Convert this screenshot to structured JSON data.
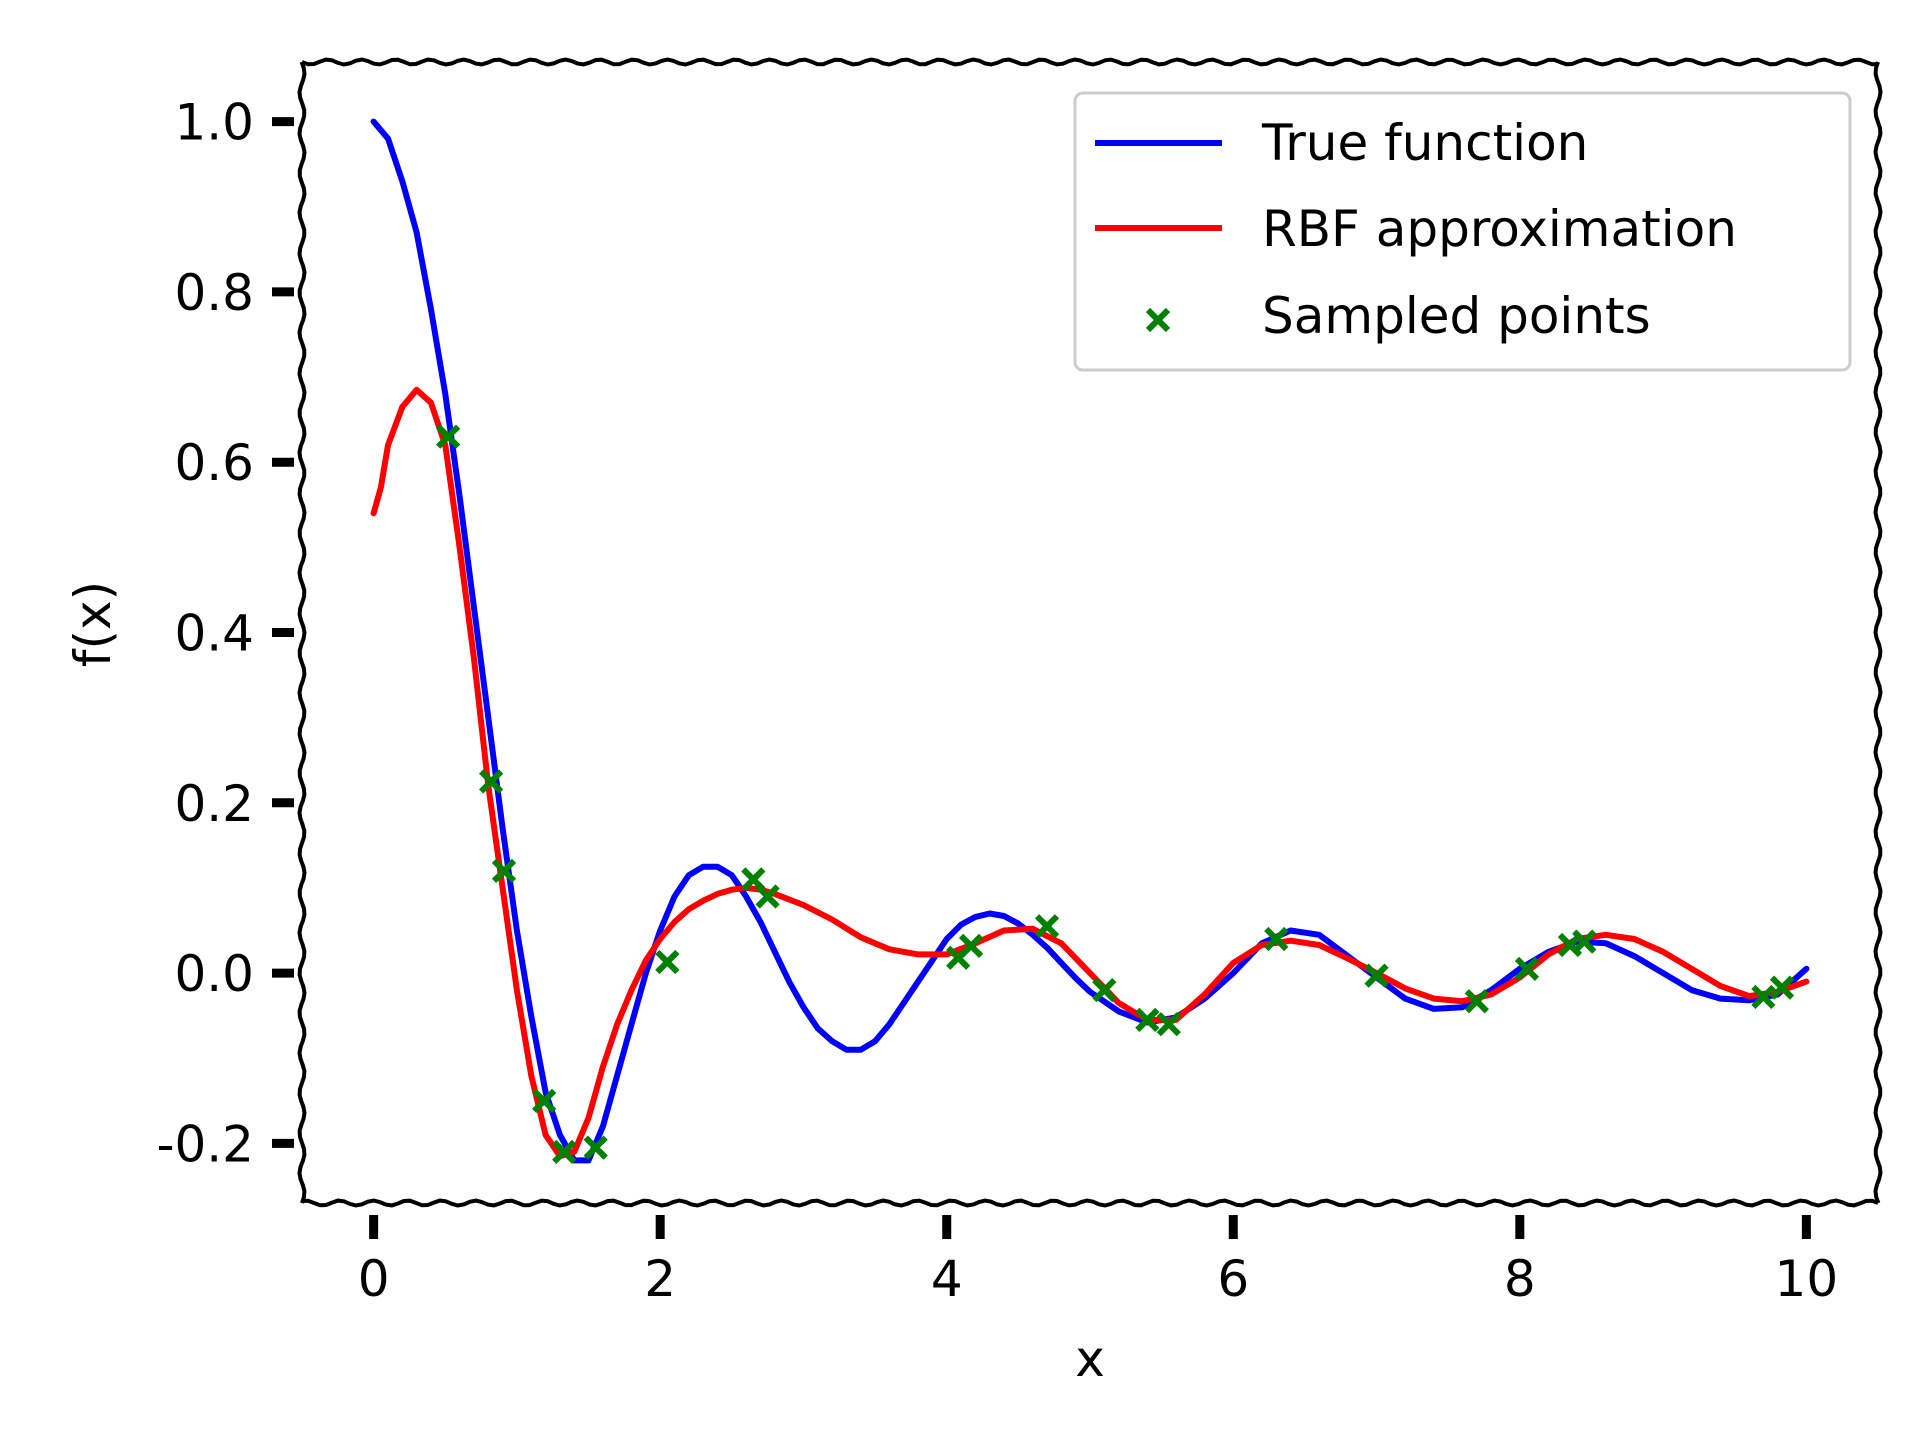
{
  "chart_data": {
    "type": "line",
    "title": "",
    "xlabel": "x",
    "ylabel": "f(x)",
    "xlim": [
      -0.5,
      10.5
    ],
    "ylim": [
      -0.27,
      1.07
    ],
    "xticks": [
      0,
      2,
      4,
      6,
      8,
      10
    ],
    "xtick_labels": [
      "0",
      "2",
      "4",
      "6",
      "8",
      "10"
    ],
    "yticks": [
      -0.2,
      0.0,
      0.2,
      0.4,
      0.6,
      0.8,
      1.0
    ],
    "ytick_labels": [
      "-0.2",
      "0.0",
      "0.2",
      "0.4",
      "0.6",
      "0.8",
      "1.0"
    ],
    "grid": false,
    "legend": "top-right",
    "series": [
      {
        "name": "True function",
        "kind": "line",
        "color": "#0000ff",
        "x": [
          0,
          0.1,
          0.2,
          0.3,
          0.4,
          0.5,
          0.6,
          0.7,
          0.8,
          0.9,
          1.0,
          1.1,
          1.2,
          1.3,
          1.4,
          1.5,
          1.6,
          1.7,
          1.8,
          1.9,
          2.0,
          2.1,
          2.2,
          2.3,
          2.4,
          2.5,
          2.6,
          2.7,
          2.8,
          2.9,
          3.0,
          3.1,
          3.2,
          3.3,
          3.4,
          3.5,
          3.6,
          3.7,
          3.8,
          3.9,
          4.0,
          4.1,
          4.2,
          4.3,
          4.4,
          4.5,
          4.6,
          4.7,
          4.8,
          4.9,
          5.0,
          5.2,
          5.4,
          5.6,
          5.8,
          6.0,
          6.2,
          6.4,
          6.6,
          6.8,
          7.0,
          7.2,
          7.4,
          7.6,
          7.8,
          8.0,
          8.2,
          8.4,
          8.6,
          8.8,
          9.0,
          9.2,
          9.4,
          9.6,
          9.8,
          10.0
        ],
        "y": [
          1.0,
          0.98,
          0.93,
          0.87,
          0.78,
          0.68,
          0.56,
          0.43,
          0.3,
          0.17,
          0.05,
          -0.05,
          -0.14,
          -0.19,
          -0.22,
          -0.22,
          -0.18,
          -0.12,
          -0.06,
          0.0,
          0.05,
          0.09,
          0.115,
          0.125,
          0.125,
          0.115,
          0.09,
          0.06,
          0.025,
          -0.01,
          -0.04,
          -0.065,
          -0.08,
          -0.09,
          -0.09,
          -0.08,
          -0.06,
          -0.035,
          -0.01,
          0.015,
          0.04,
          0.057,
          0.066,
          0.07,
          0.067,
          0.058,
          0.045,
          0.03,
          0.012,
          -0.006,
          -0.022,
          -0.045,
          -0.058,
          -0.052,
          -0.03,
          0.0,
          0.035,
          0.05,
          0.045,
          0.02,
          -0.005,
          -0.03,
          -0.042,
          -0.04,
          -0.02,
          0.005,
          0.025,
          0.037,
          0.035,
          0.02,
          0.0,
          -0.02,
          -0.03,
          -0.032,
          -0.025,
          0.005
        ]
      },
      {
        "name": "RBF approximation",
        "kind": "line",
        "color": "#ff0000",
        "x": [
          0,
          0.05,
          0.1,
          0.2,
          0.3,
          0.4,
          0.5,
          0.6,
          0.7,
          0.8,
          0.9,
          1.0,
          1.1,
          1.2,
          1.3,
          1.4,
          1.5,
          1.6,
          1.7,
          1.8,
          1.9,
          2.0,
          2.1,
          2.2,
          2.3,
          2.4,
          2.5,
          2.6,
          2.7,
          2.8,
          3.0,
          3.2,
          3.4,
          3.6,
          3.8,
          4.0,
          4.2,
          4.4,
          4.6,
          4.8,
          5.0,
          5.2,
          5.4,
          5.6,
          5.8,
          6.0,
          6.2,
          6.4,
          6.6,
          6.8,
          7.0,
          7.2,
          7.4,
          7.6,
          7.8,
          8.0,
          8.2,
          8.4,
          8.6,
          8.8,
          9.0,
          9.2,
          9.4,
          9.6,
          9.8,
          10.0
        ],
        "y": [
          0.54,
          0.57,
          0.62,
          0.665,
          0.685,
          0.67,
          0.62,
          0.5,
          0.37,
          0.22,
          0.1,
          -0.02,
          -0.12,
          -0.19,
          -0.215,
          -0.21,
          -0.17,
          -0.11,
          -0.06,
          -0.02,
          0.015,
          0.04,
          0.06,
          0.075,
          0.085,
          0.093,
          0.098,
          0.1,
          0.098,
          0.093,
          0.08,
          0.063,
          0.042,
          0.028,
          0.022,
          0.022,
          0.035,
          0.05,
          0.052,
          0.035,
          0.0,
          -0.035,
          -0.055,
          -0.055,
          -0.025,
          0.012,
          0.033,
          0.038,
          0.033,
          0.017,
          0.0,
          -0.018,
          -0.03,
          -0.033,
          -0.025,
          -0.005,
          0.022,
          0.04,
          0.045,
          0.04,
          0.025,
          0.005,
          -0.015,
          -0.027,
          -0.022,
          -0.01
        ]
      },
      {
        "name": "Sampled points",
        "kind": "scatter",
        "marker": "x",
        "color": "#008000",
        "x": [
          0.52,
          0.82,
          0.91,
          1.19,
          1.33,
          1.55,
          2.05,
          2.65,
          2.75,
          4.08,
          4.17,
          4.7,
          5.1,
          5.4,
          5.55,
          6.3,
          7.0,
          7.7,
          8.05,
          8.35,
          8.45,
          9.7,
          9.83
        ],
        "y": [
          0.63,
          0.225,
          0.12,
          -0.15,
          -0.21,
          -0.205,
          0.013,
          0.11,
          0.09,
          0.018,
          0.032,
          0.055,
          -0.02,
          -0.055,
          -0.06,
          0.04,
          -0.003,
          -0.033,
          0.005,
          0.033,
          0.037,
          -0.028,
          -0.017
        ]
      }
    ]
  }
}
